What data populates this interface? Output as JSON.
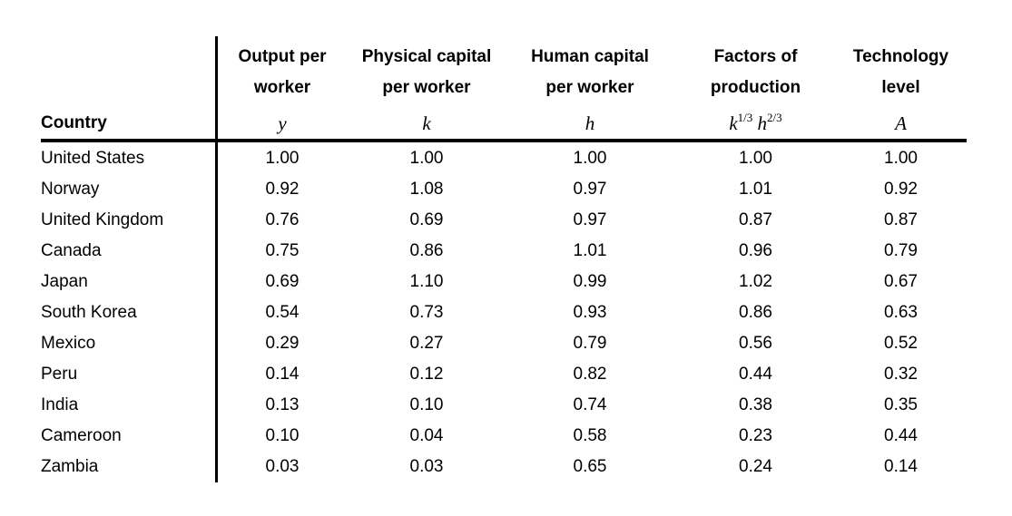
{
  "chart_data": {
    "type": "table",
    "row_header_label": "Country",
    "columns": [
      {
        "title": [
          "Output per",
          "worker"
        ],
        "symbol": {
          "base1": "y"
        }
      },
      {
        "title": [
          "Physical capital",
          "per worker"
        ],
        "symbol": {
          "base1": "k"
        }
      },
      {
        "title": [
          "Human capital",
          "per worker"
        ],
        "symbol": {
          "base1": "h"
        }
      },
      {
        "title": [
          "Factors of",
          "production"
        ],
        "symbol": {
          "base1": "k",
          "sup1": "1/3",
          "base2": "h",
          "sup2": "2/3"
        }
      },
      {
        "title": [
          "Technology",
          "level"
        ],
        "symbol": {
          "base1": "A"
        }
      }
    ],
    "rows": [
      {
        "country": "United States",
        "values": [
          "1.00",
          "1.00",
          "1.00",
          "1.00",
          "1.00"
        ]
      },
      {
        "country": "Norway",
        "values": [
          "0.92",
          "1.08",
          "0.97",
          "1.01",
          "0.92"
        ]
      },
      {
        "country": "United Kingdom",
        "values": [
          "0.76",
          "0.69",
          "0.97",
          "0.87",
          "0.87"
        ]
      },
      {
        "country": "Canada",
        "values": [
          "0.75",
          "0.86",
          "1.01",
          "0.96",
          "0.79"
        ]
      },
      {
        "country": "Japan",
        "values": [
          "0.69",
          "1.10",
          "0.99",
          "1.02",
          "0.67"
        ]
      },
      {
        "country": "South Korea",
        "values": [
          "0.54",
          "0.73",
          "0.93",
          "0.86",
          "0.63"
        ]
      },
      {
        "country": "Mexico",
        "values": [
          "0.29",
          "0.27",
          "0.79",
          "0.56",
          "0.52"
        ]
      },
      {
        "country": "Peru",
        "values": [
          "0.14",
          "0.12",
          "0.82",
          "0.44",
          "0.32"
        ]
      },
      {
        "country": "India",
        "values": [
          "0.13",
          "0.10",
          "0.74",
          "0.38",
          "0.35"
        ]
      },
      {
        "country": "Cameroon",
        "values": [
          "0.10",
          "0.04",
          "0.58",
          "0.23",
          "0.44"
        ]
      },
      {
        "country": "Zambia",
        "values": [
          "0.03",
          "0.03",
          "0.65",
          "0.24",
          "0.14"
        ]
      }
    ],
    "colors": {
      "background": "#ffffff",
      "text": "#000000",
      "rule": "#000000"
    }
  }
}
